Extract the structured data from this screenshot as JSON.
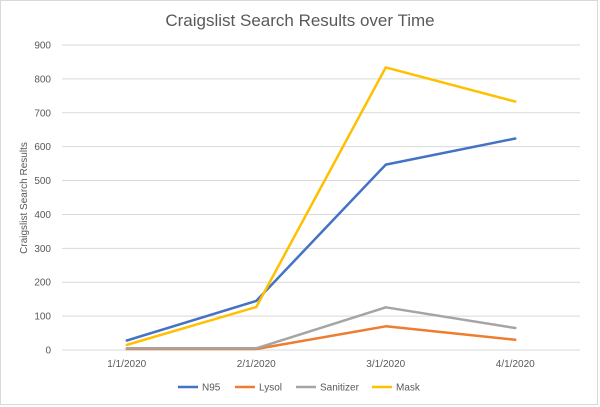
{
  "chart_data": {
    "type": "line",
    "title": "Craigslist Search Results over Time",
    "xlabel": "",
    "ylabel": "Craigslist Search Results",
    "categories": [
      "1/1/2020",
      "2/1/2020",
      "3/1/2020",
      "4/1/2020"
    ],
    "ylim": [
      0,
      900
    ],
    "yticks": [
      0,
      100,
      200,
      300,
      400,
      500,
      600,
      700,
      800,
      900
    ],
    "grid": true,
    "legend_position": "bottom",
    "series": [
      {
        "name": "N95",
        "color": "#4472C4",
        "values": [
          28,
          145,
          547,
          624
        ]
      },
      {
        "name": "Lysol",
        "color": "#ED7D31",
        "values": [
          3,
          3,
          70,
          30
        ]
      },
      {
        "name": "Sanitizer",
        "color": "#A5A5A5",
        "values": [
          5,
          5,
          126,
          65
        ]
      },
      {
        "name": "Mask",
        "color": "#FFC000",
        "values": [
          15,
          127,
          834,
          733
        ]
      }
    ]
  }
}
